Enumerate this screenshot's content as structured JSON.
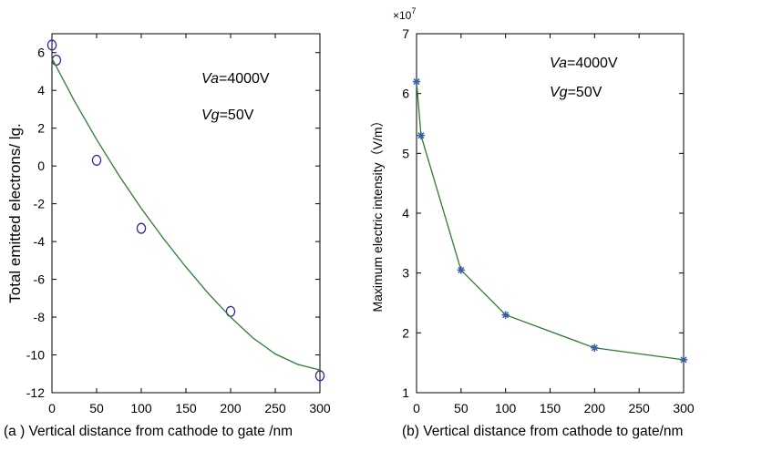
{
  "chart_data": [
    {
      "type": "scatter",
      "caption": "(a ) Vertical distance from cathode to gate /nm",
      "xlabel": "",
      "ylabel": "Total emitted electrons/ lg.",
      "xlim": [
        0,
        300
      ],
      "ylim": [
        -12,
        7
      ],
      "xticks": [
        0,
        50,
        100,
        150,
        200,
        250,
        300
      ],
      "yticks": [
        -12,
        -10,
        -8,
        -6,
        -4,
        -2,
        0,
        2,
        4,
        6
      ],
      "annotations": [
        {
          "italic": "Va",
          "rest": "=4000V"
        },
        {
          "italic": "Vg",
          "rest": "=50V"
        }
      ],
      "series": [
        {
          "kind": "markers",
          "marker": "circle",
          "color": "#2a2a9a",
          "x": [
            0,
            5,
            50,
            100,
            200,
            300
          ],
          "y": [
            6.4,
            5.6,
            0.3,
            -3.3,
            -7.7,
            -11.1
          ]
        },
        {
          "kind": "fit",
          "color": "#2e7d32",
          "x": [
            0,
            25,
            50,
            75,
            100,
            125,
            150,
            175,
            200,
            225,
            250,
            275,
            300
          ],
          "y": [
            5.7,
            3.45,
            1.4,
            -0.5,
            -2.25,
            -3.85,
            -5.35,
            -6.75,
            -8.0,
            -9.1,
            -9.95,
            -10.5,
            -10.8
          ]
        }
      ]
    },
    {
      "type": "line",
      "caption": "(b)   Vertical distance from cathode to gate/nm",
      "xlabel": "",
      "ylabel": "Maximum electric intensity（V/m）",
      "exponent": "×10",
      "exponent_power": "7",
      "xlim": [
        0,
        300
      ],
      "ylim": [
        1,
        7
      ],
      "xticks": [
        0,
        50,
        100,
        150,
        200,
        250,
        300
      ],
      "yticks": [
        1,
        2,
        3,
        4,
        5,
        6,
        7
      ],
      "annotations": [
        {
          "italic": "Va",
          "rest": "=4000V"
        },
        {
          "italic": "Vg",
          "rest": "=50V"
        }
      ],
      "series": [
        {
          "kind": "line",
          "marker": "star",
          "line_color": "#2e7d32",
          "marker_color": "#3a5f9e",
          "x": [
            0,
            5,
            50,
            100,
            200,
            300
          ],
          "y": [
            6.2,
            5.3,
            3.05,
            2.3,
            1.75,
            1.55
          ]
        }
      ]
    }
  ]
}
